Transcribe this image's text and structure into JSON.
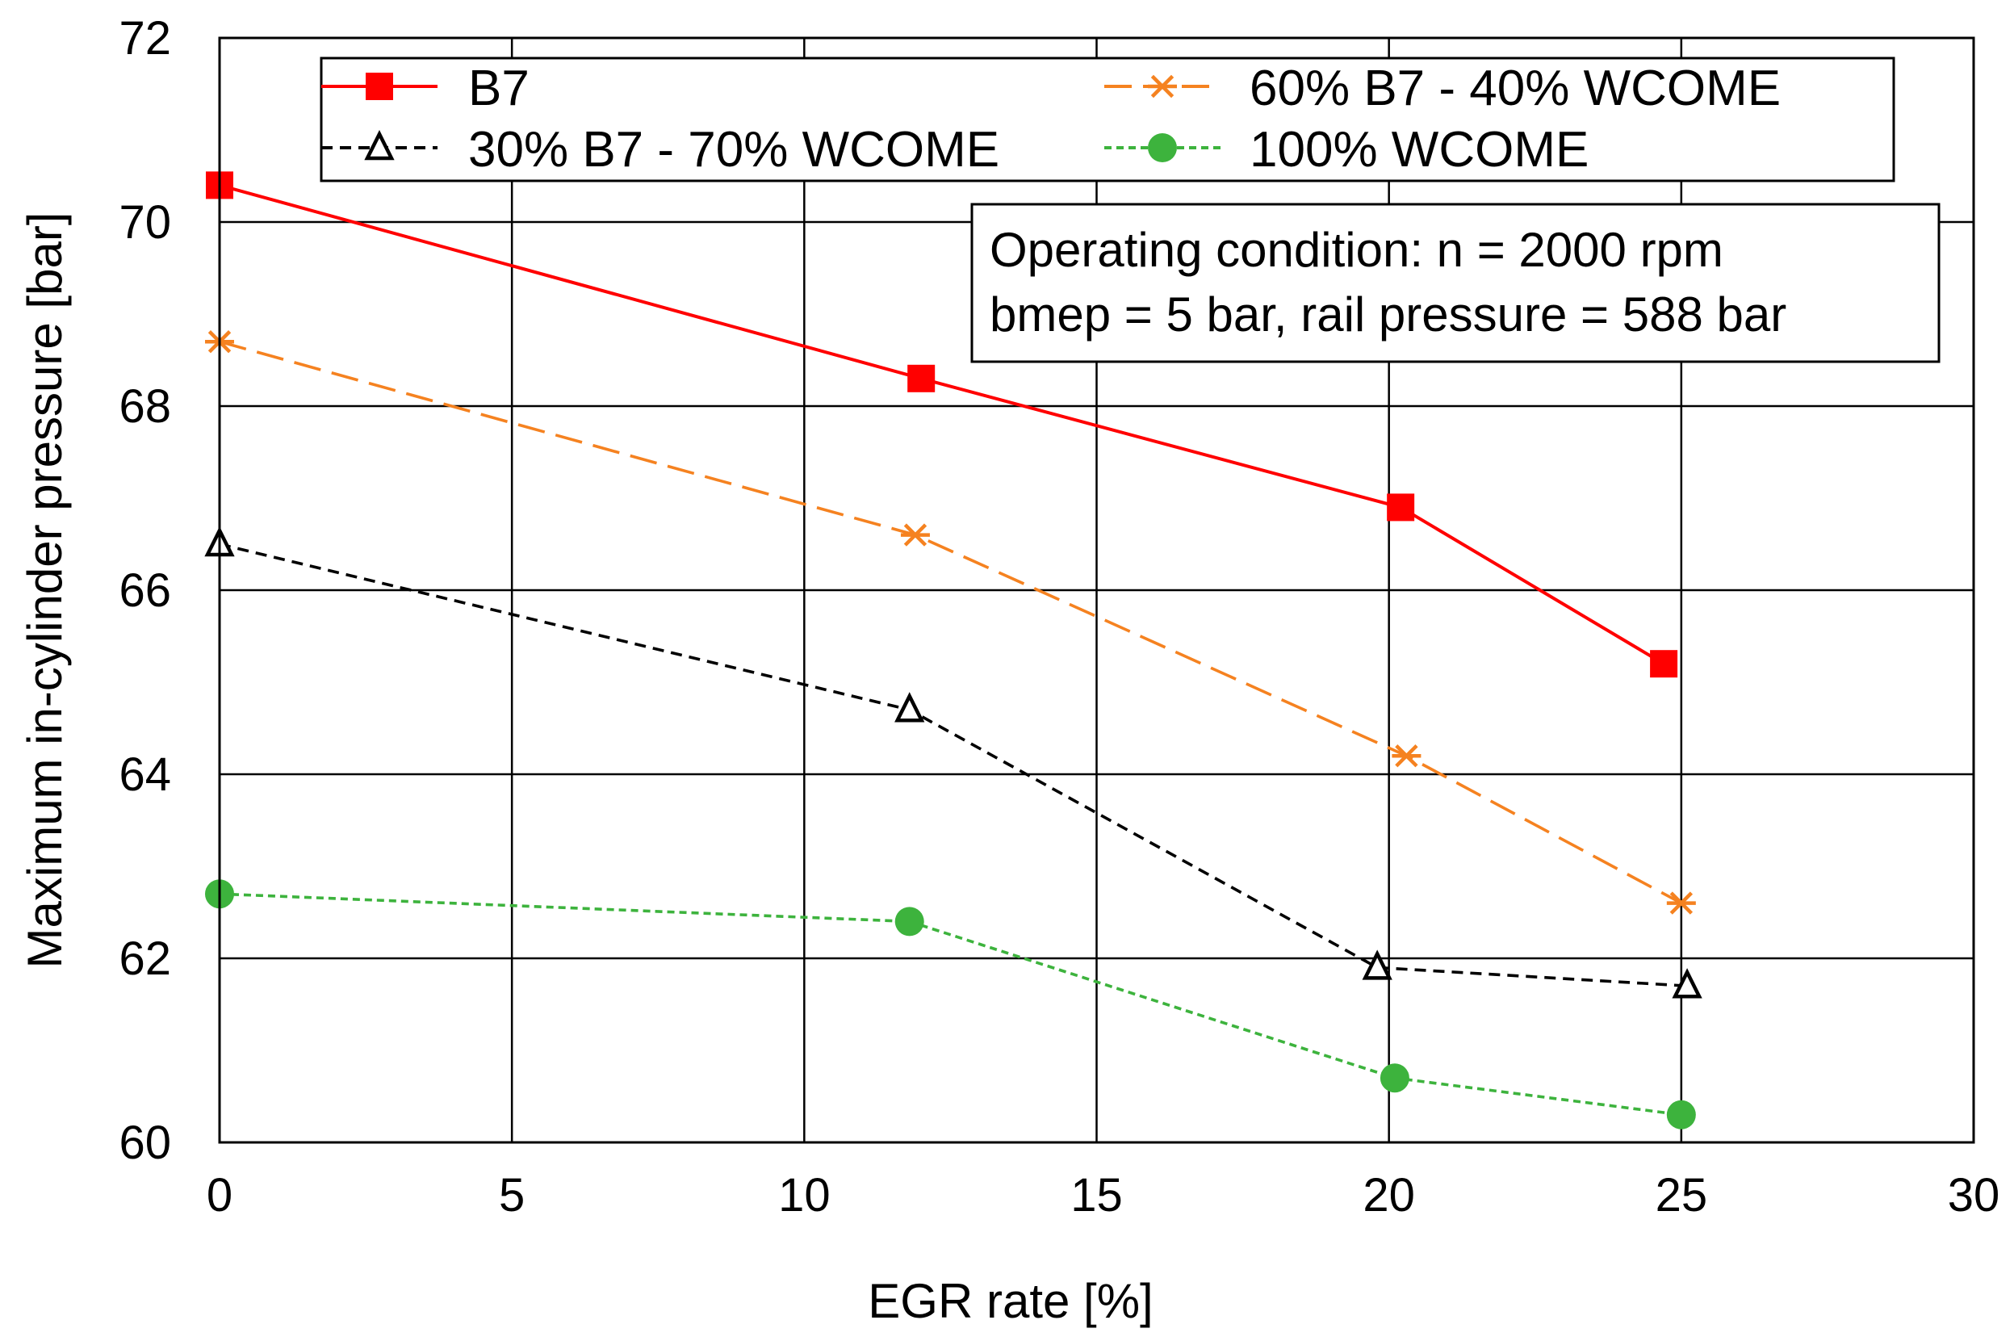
{
  "chart_data": {
    "type": "line",
    "title": "",
    "xlabel": "EGR rate [%]",
    "ylabel": "Maximum in-cylinder pressure [bar]",
    "xlim": [
      0,
      30
    ],
    "ylim": [
      60,
      72
    ],
    "xticks": [
      0,
      5,
      10,
      15,
      20,
      25,
      30
    ],
    "yticks": [
      60,
      62,
      64,
      66,
      68,
      70,
      72
    ],
    "x_tick_labels": [
      "0",
      "5",
      "10",
      "15",
      "20",
      "25",
      "30"
    ],
    "y_tick_labels": [
      "60",
      "62",
      "64",
      "66",
      "68",
      "70",
      "72"
    ],
    "grid": true,
    "legend_position": "top",
    "series": [
      {
        "name": "B7",
        "color": "#ff0000",
        "marker": "square",
        "line_style": "solid",
        "x": [
          0,
          12.0,
          20.2,
          24.7
        ],
        "y": [
          70.4,
          68.3,
          66.9,
          65.2
        ]
      },
      {
        "name": "60% B7 - 40% WCOME",
        "color": "#f58220",
        "marker": "asterisk",
        "line_style": "long-dash",
        "x": [
          0,
          11.9,
          20.3,
          25.0
        ],
        "y": [
          68.7,
          66.6,
          64.2,
          62.6
        ]
      },
      {
        "name": "30% B7 - 70% WCOME",
        "color": "#000000",
        "marker": "triangle-open",
        "line_style": "dash",
        "x": [
          0,
          11.8,
          19.8,
          25.1
        ],
        "y": [
          66.5,
          64.7,
          61.9,
          61.7
        ]
      },
      {
        "name": "100% WCOME",
        "color": "#3db33d",
        "marker": "circle",
        "line_style": "short-dash",
        "x": [
          0,
          11.8,
          20.1,
          25.0
        ],
        "y": [
          62.7,
          62.4,
          60.7,
          60.3
        ]
      }
    ],
    "annotation": {
      "line1": "Operating condition: n = 2000 rpm",
      "line2": "bmep = 5 bar, rail pressure = 588 bar"
    }
  }
}
